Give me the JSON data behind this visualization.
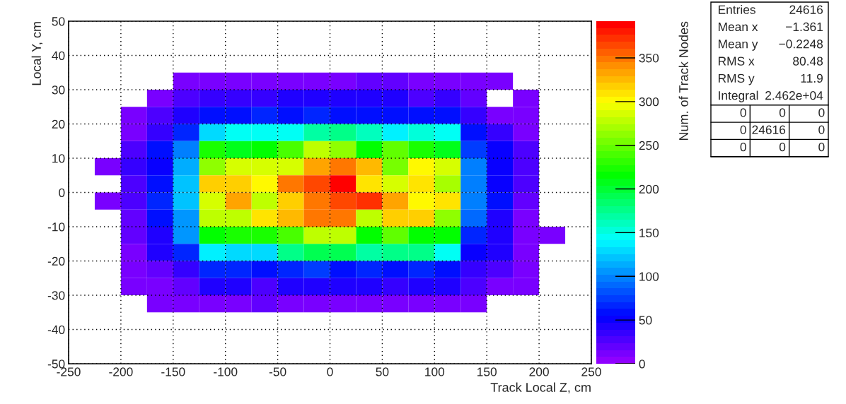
{
  "chart_data": {
    "type": "heatmap",
    "xlabel": "Track Local Z, cm",
    "ylabel": "Local Y, cm",
    "clabel": "Num. of Track Nodes",
    "x": [
      -212.5,
      -187.5,
      -162.5,
      -137.5,
      -112.5,
      -87.5,
      -62.5,
      -37.5,
      -12.5,
      12.5,
      37.5,
      62.5,
      87.5,
      112.5,
      137.5,
      162.5,
      187.5,
      212.5
    ],
    "y": [
      32.5,
      27.5,
      22.5,
      17.5,
      12.5,
      7.5,
      2.5,
      -2.5,
      -7.5,
      -12.5,
      -17.5,
      -22.5,
      -27.5,
      -32.5
    ],
    "cells": [
      [
        null,
        null,
        null,
        12,
        12,
        12,
        12,
        12,
        12,
        12,
        20,
        22,
        12,
        12,
        12,
        12,
        null,
        null
      ],
      [
        null,
        null,
        12,
        30,
        38,
        33,
        32,
        40,
        40,
        40,
        40,
        45,
        30,
        32,
        22,
        null,
        12,
        null
      ],
      [
        null,
        12,
        25,
        40,
        55,
        55,
        65,
        57,
        68,
        60,
        57,
        55,
        55,
        55,
        32,
        12,
        12,
        null
      ],
      [
        null,
        12,
        32,
        65,
        132,
        145,
        148,
        148,
        165,
        180,
        160,
        140,
        155,
        145,
        55,
        35,
        12,
        null
      ],
      [
        null,
        25,
        55,
        95,
        225,
        205,
        215,
        240,
        280,
        265,
        215,
        245,
        225,
        205,
        75,
        48,
        30,
        null
      ],
      [
        12,
        32,
        50,
        110,
        262,
        290,
        283,
        290,
        335,
        345,
        325,
        255,
        300,
        283,
        95,
        50,
        25,
        null
      ],
      [
        null,
        25,
        55,
        120,
        318,
        318,
        300,
        352,
        362,
        392,
        310,
        290,
        310,
        272,
        95,
        50,
        25,
        null
      ],
      [
        12,
        25,
        65,
        125,
        290,
        330,
        280,
        318,
        352,
        367,
        375,
        330,
        300,
        310,
        95,
        57,
        22,
        null
      ],
      [
        null,
        22,
        55,
        102,
        280,
        280,
        310,
        325,
        345,
        345,
        280,
        318,
        318,
        265,
        88,
        47,
        12,
        null
      ],
      [
        null,
        22,
        45,
        102,
        215,
        225,
        225,
        240,
        280,
        280,
        215,
        248,
        215,
        215,
        70,
        47,
        12,
        12
      ],
      [
        null,
        12,
        42,
        65,
        140,
        132,
        132,
        178,
        190,
        190,
        170,
        175,
        180,
        148,
        50,
        42,
        12,
        null
      ],
      [
        null,
        12,
        22,
        32,
        65,
        65,
        57,
        65,
        75,
        57,
        70,
        57,
        65,
        57,
        35,
        25,
        12,
        null
      ],
      [
        null,
        12,
        12,
        22,
        40,
        45,
        30,
        45,
        40,
        45,
        42,
        37,
        40,
        47,
        25,
        12,
        12,
        null
      ],
      [
        null,
        null,
        12,
        12,
        12,
        12,
        22,
        12,
        12,
        12,
        12,
        12,
        12,
        12,
        12,
        null,
        null,
        null
      ]
    ],
    "xlim": [
      -250,
      250
    ],
    "xticks": [
      -250,
      -200,
      -150,
      -100,
      -50,
      0,
      50,
      100,
      150,
      200,
      250
    ],
    "ylim": [
      -50,
      50
    ],
    "yticks": [
      -50,
      -40,
      -30,
      -20,
      -10,
      0,
      10,
      20,
      30,
      40,
      50
    ],
    "clim": [
      0,
      392
    ],
    "cticks": [
      0,
      50,
      100,
      150,
      200,
      250,
      300,
      350
    ],
    "grid": true,
    "annotations": [
      "Entries",
      "24616",
      "Mean x",
      "−1.361",
      "Mean y",
      "−0.2248",
      "RMS x",
      "80.48",
      "RMS y",
      "11.9",
      "Integral",
      "2.462e+04",
      "0",
      "0",
      "0",
      "0",
      "24616",
      "0",
      "0",
      "0",
      "0"
    ]
  }
}
